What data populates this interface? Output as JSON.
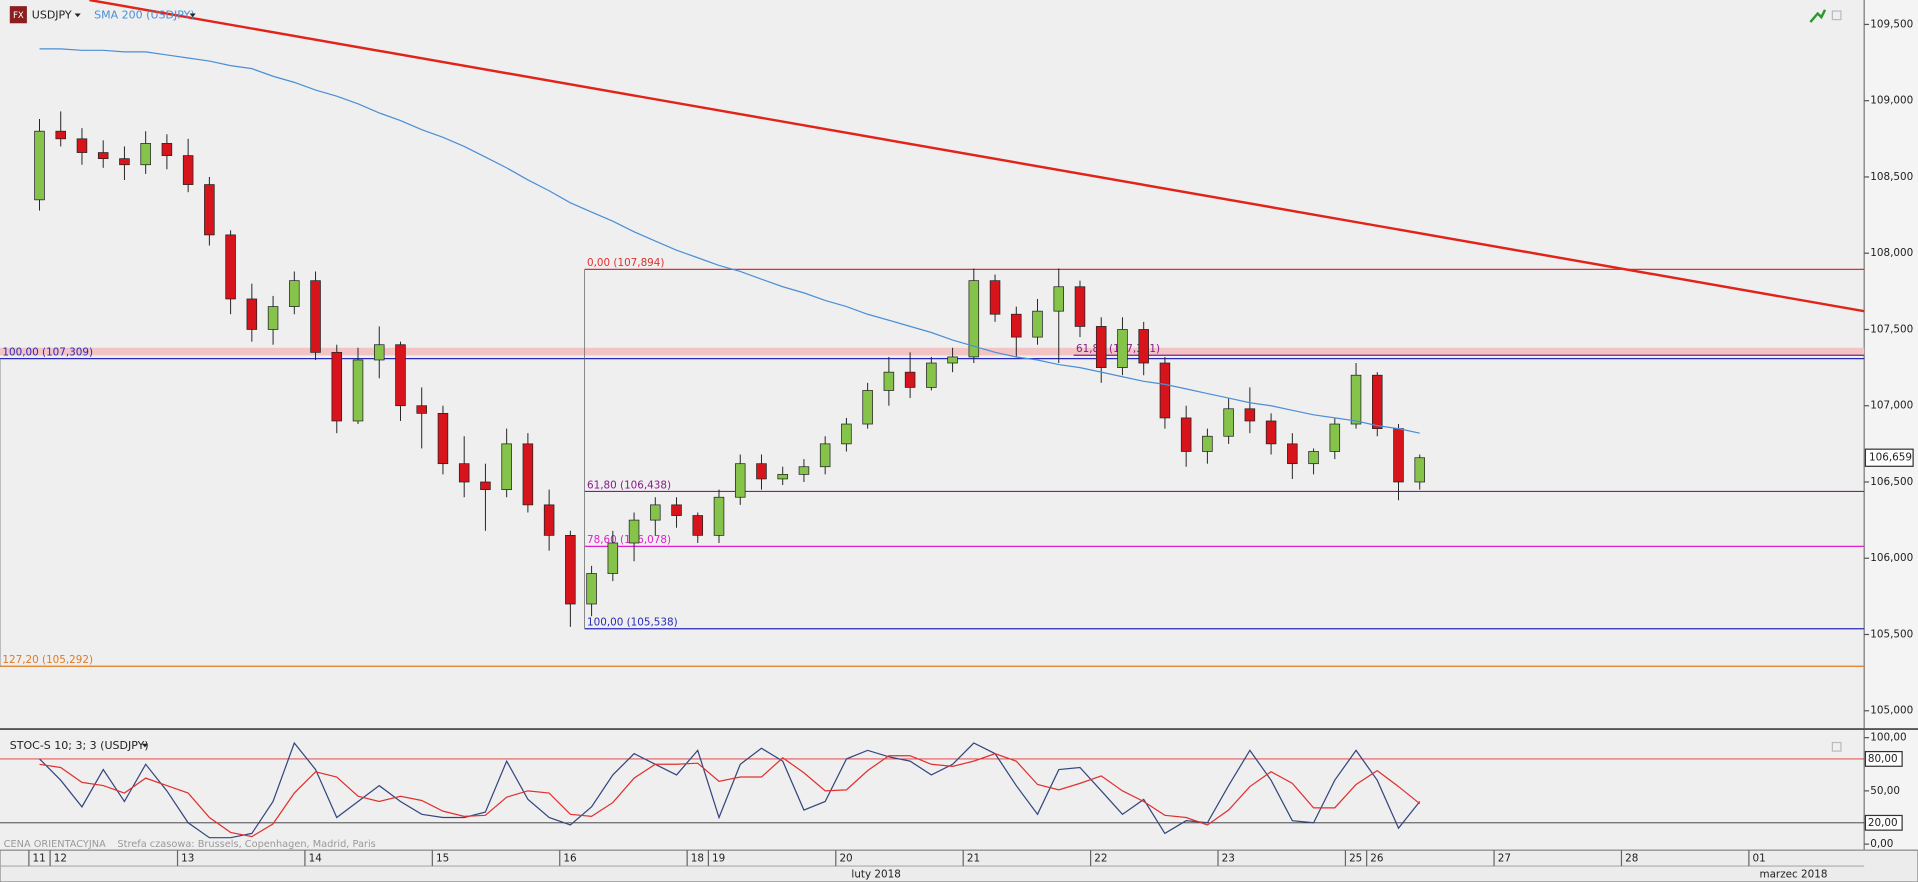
{
  "chart_data": [
    {
      "type": "candlestick",
      "icon": "FX",
      "series": [
        {
          "name": "USDJPY",
          "type": "candlestick",
          "up_color": "#86c34a",
          "down_color": "#d7141c",
          "open": [
            108.35,
            108.8,
            108.75,
            108.66,
            108.62,
            108.58,
            108.72,
            108.64,
            108.45,
            108.12,
            107.7,
            107.5,
            107.65,
            107.82,
            107.35,
            106.9,
            107.3,
            107.4,
            107.0,
            106.95,
            106.62,
            106.5,
            106.45,
            106.75,
            106.35,
            106.15,
            105.7,
            105.9,
            106.1,
            106.25,
            106.35,
            106.28,
            106.15,
            106.4,
            106.62,
            106.52,
            106.55,
            106.6,
            106.75,
            106.88,
            107.1,
            107.22,
            107.12,
            107.28,
            107.32,
            107.82,
            107.6,
            107.45,
            107.62,
            107.78,
            107.52,
            107.25,
            107.5,
            107.28,
            106.92,
            106.7,
            106.8,
            106.98,
            106.9,
            106.75,
            106.62,
            106.7,
            106.88,
            107.2,
            106.85,
            106.5
          ],
          "high": [
            108.88,
            108.93,
            108.82,
            108.74,
            108.7,
            108.8,
            108.78,
            108.75,
            108.5,
            108.15,
            107.8,
            107.72,
            107.88,
            107.88,
            107.4,
            107.38,
            107.52,
            107.42,
            107.12,
            107.0,
            106.8,
            106.62,
            106.85,
            106.82,
            106.45,
            106.18,
            105.95,
            106.18,
            106.3,
            106.4,
            106.4,
            106.3,
            106.45,
            106.68,
            106.68,
            106.6,
            106.65,
            106.8,
            106.92,
            107.15,
            107.32,
            107.35,
            107.32,
            107.38,
            107.9,
            107.86,
            107.65,
            107.7,
            107.9,
            107.82,
            107.58,
            107.58,
            107.55,
            107.32,
            107.0,
            106.85,
            107.05,
            107.12,
            106.95,
            106.82,
            106.72,
            106.92,
            107.28,
            107.22,
            106.88,
            106.68
          ],
          "low": [
            108.28,
            108.7,
            108.58,
            108.56,
            108.48,
            108.52,
            108.55,
            108.4,
            108.05,
            107.6,
            107.42,
            107.4,
            107.6,
            107.3,
            106.82,
            106.88,
            107.18,
            106.9,
            106.72,
            106.55,
            106.4,
            106.18,
            106.4,
            106.3,
            106.05,
            105.55,
            105.62,
            105.85,
            105.98,
            106.15,
            106.2,
            106.1,
            106.1,
            106.35,
            106.45,
            106.48,
            106.5,
            106.55,
            106.7,
            106.85,
            107.0,
            107.05,
            107.1,
            107.22,
            107.28,
            107.55,
            107.32,
            107.4,
            107.28,
            107.45,
            107.15,
            107.2,
            107.2,
            106.85,
            106.6,
            106.62,
            106.75,
            106.82,
            106.68,
            106.52,
            106.55,
            106.65,
            106.85,
            106.8,
            106.38,
            106.45
          ],
          "close": [
            108.8,
            108.75,
            108.66,
            108.62,
            108.58,
            108.72,
            108.64,
            108.45,
            108.12,
            107.7,
            107.5,
            107.65,
            107.82,
            107.35,
            106.9,
            107.3,
            107.4,
            107.0,
            106.95,
            106.62,
            106.5,
            106.45,
            106.75,
            106.35,
            106.15,
            105.7,
            105.9,
            106.1,
            106.25,
            106.35,
            106.28,
            106.15,
            106.4,
            106.62,
            106.52,
            106.55,
            106.6,
            106.75,
            106.88,
            107.1,
            107.22,
            107.12,
            107.28,
            107.32,
            107.82,
            107.6,
            107.45,
            107.62,
            107.78,
            107.52,
            107.25,
            107.5,
            107.28,
            106.92,
            106.7,
            106.8,
            106.98,
            106.9,
            106.75,
            106.62,
            106.7,
            106.88,
            107.2,
            106.85,
            106.5,
            106.659
          ]
        },
        {
          "name": "SMA 200 (USDJPY)",
          "type": "line",
          "color": "#4a8fd6",
          "values": [
            109.34,
            109.34,
            109.33,
            109.33,
            109.32,
            109.32,
            109.3,
            109.28,
            109.26,
            109.23,
            109.21,
            109.16,
            109.12,
            109.07,
            109.03,
            108.98,
            108.92,
            108.87,
            108.81,
            108.76,
            108.7,
            108.63,
            108.56,
            108.48,
            108.41,
            108.33,
            108.27,
            108.21,
            108.14,
            108.08,
            108.02,
            107.97,
            107.92,
            107.88,
            107.83,
            107.78,
            107.74,
            107.69,
            107.65,
            107.6,
            107.56,
            107.52,
            107.48,
            107.43,
            107.39,
            107.35,
            107.32,
            107.3,
            107.27,
            107.25,
            107.22,
            107.19,
            107.16,
            107.14,
            107.11,
            107.08,
            107.05,
            107.02,
            107.0,
            106.97,
            106.94,
            106.92,
            106.9,
            106.87,
            106.85,
            106.82
          ]
        }
      ],
      "xlim": [
        -1.86,
        85.93
      ],
      "ylim": [
        104.888,
        109.66
      ],
      "yticks": [
        {
          "value": 105,
          "label": "105,000"
        },
        {
          "value": 105.5,
          "label": "105,500"
        },
        {
          "value": 106,
          "label": "106,000"
        },
        {
          "value": 106.5,
          "label": "106,500"
        },
        {
          "value": 107,
          "label": "107,000"
        },
        {
          "value": 107.5,
          "label": "107,500"
        },
        {
          "value": 108,
          "label": "108,000"
        },
        {
          "value": 108.5,
          "label": "108,500"
        },
        {
          "value": 109,
          "label": "109,000"
        },
        {
          "value": 109.5,
          "label": "109,500"
        }
      ],
      "last_price": {
        "value": 106.659,
        "label": "106,659"
      },
      "trendline": {
        "color": "#e2231a",
        "x": [
          2.35,
          85.93
        ],
        "y": [
          109.66,
          107.62
        ]
      },
      "zone": {
        "from": 107.33,
        "to": 107.38,
        "color": "#f2c4c4"
      },
      "fib_levels": [
        {
          "label": "0,00 (107,894)",
          "value": 107.894,
          "x_start": 25.67,
          "color": "#e03030"
        },
        {
          "label": "100,00 (107,309)",
          "value": 107.309,
          "x_start": -1.86,
          "color": "#2a2ab8"
        },
        {
          "label": "61,80 (107,331)",
          "value": 107.331,
          "x_start": 48.7,
          "color": "#8a1a8a"
        },
        {
          "label": "61,80 (106,438)",
          "value": 106.438,
          "x_start": 25.67,
          "color": "#8a1a8a"
        },
        {
          "label": "78,60 (106,078)",
          "value": 106.078,
          "x_start": 25.67,
          "color": "#e020d0"
        },
        {
          "label": "100,00 (105,538)",
          "value": 105.538,
          "x_start": 25.67,
          "color": "#2a2ab8"
        },
        {
          "label": "127,20 (105,292)",
          "value": 105.292,
          "x_start": -1.86,
          "color": "#e07a20"
        }
      ]
    },
    {
      "type": "line",
      "title": "STOC-S 10; 3; 3 (USDJPY)",
      "series": [
        {
          "color": "#34467e",
          "values": [
            80,
            60,
            35,
            70,
            40,
            75,
            50,
            20,
            6,
            6,
            10,
            40,
            95,
            70,
            25,
            40,
            55,
            40,
            28,
            25,
            25,
            30,
            78,
            42,
            25,
            18,
            35,
            65,
            85,
            75,
            65,
            88,
            25,
            75,
            90,
            78,
            32,
            40,
            80,
            88,
            82,
            78,
            65,
            75,
            95,
            85,
            55,
            28,
            70,
            72,
            50,
            28,
            42,
            10,
            22,
            20,
            55,
            88,
            60,
            22,
            20,
            60,
            88,
            60,
            15,
            40
          ]
        },
        {
          "color": "#e03030",
          "values": [
            75,
            72,
            58,
            55,
            48,
            62,
            55,
            48,
            25,
            11,
            7,
            19,
            48,
            68,
            63,
            45,
            40,
            45,
            41,
            31,
            26,
            27,
            44,
            50,
            48,
            28,
            26,
            39,
            62,
            75,
            75,
            76,
            59,
            63,
            63,
            81,
            67,
            50,
            51,
            69,
            83,
            83,
            75,
            73,
            78,
            85,
            78,
            56,
            51,
            57,
            64,
            50,
            40,
            27,
            25,
            18,
            32,
            54,
            68,
            57,
            34,
            34,
            56,
            69,
            54,
            38
          ]
        }
      ],
      "xlim": [
        -1.86,
        85.93
      ],
      "ylim": [
        -5.7,
        106.9
      ],
      "yticks": [
        {
          "value": 0,
          "label": "0,00"
        },
        {
          "value": 50,
          "label": "50,00"
        },
        {
          "value": 100,
          "label": "100,00"
        }
      ],
      "levels": [
        {
          "value": 80,
          "label": "80,00",
          "color": "#e03030"
        },
        {
          "value": 20,
          "label": "20,00",
          "color": "#333333"
        }
      ],
      "xticks": [
        {
          "value": -0.5,
          "label": "11"
        },
        {
          "value": 0.5,
          "label": "12"
        },
        {
          "value": 6.5,
          "label": "13"
        },
        {
          "value": 12.5,
          "label": "14"
        },
        {
          "value": 18.5,
          "label": "15"
        },
        {
          "value": 24.5,
          "label": "16"
        },
        {
          "value": 30.5,
          "label": "18"
        },
        {
          "value": 31.5,
          "label": "19"
        },
        {
          "value": 37.5,
          "label": "20"
        },
        {
          "value": 43.5,
          "label": "21"
        },
        {
          "value": 49.5,
          "label": "22"
        },
        {
          "value": 55.5,
          "label": "23"
        },
        {
          "value": 61.5,
          "label": "25"
        },
        {
          "value": 62.5,
          "label": "26"
        },
        {
          "value": 68.5,
          "label": "27"
        },
        {
          "value": 74.5,
          "label": "28"
        },
        {
          "value": 80.5,
          "label": "01"
        }
      ],
      "x2ticks": [
        {
          "value": 39.4,
          "label": "luty 2018"
        },
        {
          "value": 82.6,
          "label": "marzec 2018"
        }
      ]
    }
  ],
  "footer": {
    "source": "CENA ORIENTACYJNA",
    "timezone": "Strefa czasowa: Brussels, Copenhagen, Madrid, Paris"
  }
}
